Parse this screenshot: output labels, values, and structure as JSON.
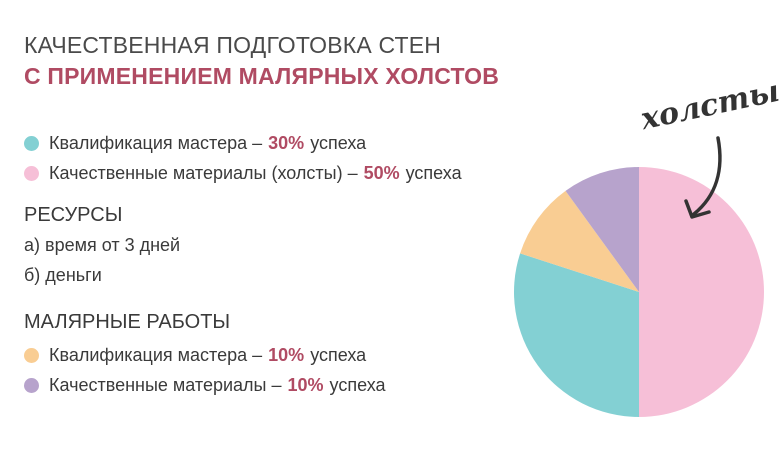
{
  "title_line1": "КАЧЕСТВЕННАЯ ПОДГОТОВКА СТЕН",
  "title_line2": "С ПРИМЕНЕНИЕМ МАЛЯРНЫХ ХОЛСТОВ",
  "group1": {
    "items": [
      {
        "label": "Квалификация мастера –",
        "pct": "30%",
        "suffix": "успеха",
        "color": "#83d0d3"
      },
      {
        "label": "Качественные материалы (холсты) –",
        "pct": "50%",
        "suffix": "успеха",
        "color": "#f6bfd7"
      }
    ]
  },
  "resources": {
    "heading": "РЕСУРСЫ",
    "lines": [
      "а) время от 3 дней",
      "б) деньги"
    ]
  },
  "group2": {
    "heading": "МАЛЯРНЫЕ РАБОТЫ",
    "items": [
      {
        "label": "Квалификация мастера –",
        "pct": "10%",
        "suffix": "успеха",
        "color": "#f9cd93"
      },
      {
        "label": "Качественные материалы –",
        "pct": "10%",
        "suffix": "успеха",
        "color": "#b7a3cc"
      }
    ]
  },
  "annotation": "холсты",
  "chart_data": {
    "type": "pie",
    "slices": [
      {
        "label": "Качественные материалы (холсты)",
        "value": 50,
        "color": "#f6bfd7"
      },
      {
        "label": "Квалификация мастера",
        "value": 30,
        "color": "#83d0d3"
      },
      {
        "label": "Квалификация мастера (малярные работы)",
        "value": 10,
        "color": "#f9cd93"
      },
      {
        "label": "Качественные материалы (малярные работы)",
        "value": 10,
        "color": "#b7a3cc"
      }
    ],
    "start": "top",
    "direction": "clockwise"
  }
}
